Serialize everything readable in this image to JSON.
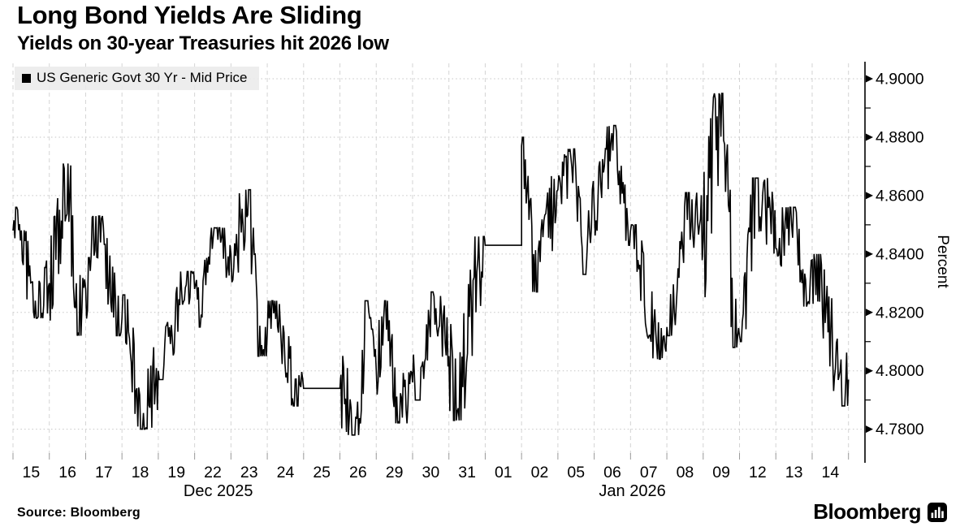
{
  "header": {
    "title": "Long Bond Yields Are Sliding",
    "subtitle": "Yields on 30-year Treasuries hit 2026 low"
  },
  "legend": {
    "label": "US Generic Govt 30 Yr - Mid Price",
    "swatch_color": "#000000"
  },
  "footer": {
    "source": "Source: Bloomberg",
    "brand": "Bloomberg"
  },
  "colors": {
    "series": "#000000",
    "grid_vertical": "#d4d4d4",
    "grid_horizontal": "#c6c6c6",
    "axis": "#000000",
    "x_tick": "#9a9a9a",
    "legend_bg": "#ebebeb",
    "background": "#ffffff",
    "text": "#000000"
  },
  "chart_data": {
    "type": "line",
    "title": "Long Bond Yields Are Sliding",
    "subtitle": "Yields on 30-year Treasuries hit 2026 low",
    "series_name": "US Generic Govt 30 Yr - Mid Price",
    "ylabel": "Percent",
    "ylim": [
      4.771,
      4.9053
    ],
    "grid": true,
    "legend_position": "top-left",
    "yticks": [
      {
        "value": 4.9,
        "label": "4.9000"
      },
      {
        "value": 4.88,
        "label": "4.8800"
      },
      {
        "value": 4.86,
        "label": "4.8600"
      },
      {
        "value": 4.84,
        "label": "4.8400"
      },
      {
        "value": 4.82,
        "label": "4.8200"
      },
      {
        "value": 4.8,
        "label": "4.8000"
      },
      {
        "value": 4.78,
        "label": "4.7800"
      }
    ],
    "y_minor_step": 0.01,
    "x_month_labels": [
      "Dec 2025",
      "Jan 2026"
    ],
    "days": [
      {
        "label": "15",
        "month": "Dec 2025",
        "open": 4.848,
        "high": 4.856,
        "low": 4.818,
        "close": 4.83,
        "th": 0.1,
        "tl": 0.65
      },
      {
        "label": "16",
        "month": "Dec 2025",
        "open": 4.83,
        "high": 4.871,
        "low": 4.812,
        "close": 4.828,
        "th": 0.5,
        "tl": 0.78
      },
      {
        "label": "17",
        "month": "Dec 2025",
        "open": 4.828,
        "high": 4.853,
        "low": 4.812,
        "close": 4.818,
        "th": 0.35,
        "tl": 0.95
      },
      {
        "label": "18",
        "month": "Dec 2025",
        "open": 4.818,
        "high": 4.826,
        "low": 4.78,
        "close": 4.8,
        "th": 0.05,
        "tl": 0.55
      },
      {
        "label": "19",
        "month": "Dec 2025",
        "open": 4.8,
        "high": 4.834,
        "low": 4.797,
        "close": 4.828,
        "th": 0.8,
        "tl": 0.05
      },
      {
        "label": "22",
        "month": "Dec 2025",
        "open": 4.828,
        "high": 4.849,
        "low": 4.815,
        "close": 4.84,
        "th": 0.45,
        "tl": 0.15
      },
      {
        "label": "23",
        "month": "Dec 2025",
        "open": 4.84,
        "high": 4.862,
        "low": 4.805,
        "close": 4.813,
        "th": 0.5,
        "tl": 0.75
      },
      {
        "label": "24",
        "month": "Dec 2025",
        "open": 4.813,
        "high": 4.824,
        "low": 4.788,
        "close": 4.794,
        "th": 0.15,
        "tl": 0.85
      },
      {
        "label": "25",
        "month": "Dec 2025",
        "open": 4.794,
        "high": 4.794,
        "low": 4.794,
        "close": 4.794,
        "flat": true
      },
      {
        "label": "26",
        "month": "Dec 2025",
        "open": 4.794,
        "high": 4.824,
        "low": 4.778,
        "close": 4.8,
        "th": 0.75,
        "tl": 0.5
      },
      {
        "label": "29",
        "month": "Dec 2025",
        "open": 4.8,
        "high": 4.824,
        "low": 4.782,
        "close": 4.796,
        "th": 0.25,
        "tl": 0.6
      },
      {
        "label": "30",
        "month": "Dec 2025",
        "open": 4.796,
        "high": 4.827,
        "low": 4.79,
        "close": 4.805,
        "th": 0.55,
        "tl": 0.2
      },
      {
        "label": "31",
        "month": "Dec 2025",
        "open": 4.805,
        "high": 4.846,
        "low": 4.783,
        "close": 4.843,
        "th": 0.95,
        "tl": 0.15
      },
      {
        "label": "01",
        "month": "Jan 2026",
        "open": 4.843,
        "high": 4.843,
        "low": 4.843,
        "close": 4.843,
        "flat": true
      },
      {
        "label": "02",
        "month": "Jan 2026",
        "open": 4.877,
        "high": 4.88,
        "low": 4.827,
        "close": 4.862,
        "th": 0.04,
        "tl": 0.35
      },
      {
        "label": "05",
        "month": "Jan 2026",
        "open": 4.862,
        "high": 4.876,
        "low": 4.833,
        "close": 4.856,
        "th": 0.45,
        "tl": 0.75
      },
      {
        "label": "06",
        "month": "Jan 2026",
        "open": 4.856,
        "high": 4.884,
        "low": 4.843,
        "close": 4.848,
        "th": 0.6,
        "tl": 0.95
      },
      {
        "label": "07",
        "month": "Jan 2026",
        "open": 4.848,
        "high": 4.85,
        "low": 4.804,
        "close": 4.815,
        "th": 0.04,
        "tl": 0.8
      },
      {
        "label": "08",
        "month": "Jan 2026",
        "open": 4.815,
        "high": 4.861,
        "low": 4.812,
        "close": 4.845,
        "th": 0.6,
        "tl": 0.05
      },
      {
        "label": "09",
        "month": "Jan 2026",
        "open": 4.845,
        "high": 4.895,
        "low": 4.808,
        "close": 4.812,
        "th": 0.55,
        "tl": 0.85
      },
      {
        "label": "12",
        "month": "Jan 2026",
        "open": 4.812,
        "high": 4.866,
        "low": 4.81,
        "close": 4.842,
        "th": 0.45,
        "tl": 0.05
      },
      {
        "label": "13",
        "month": "Jan 2026",
        "open": 4.842,
        "high": 4.856,
        "low": 4.822,
        "close": 4.838,
        "th": 0.5,
        "tl": 0.85
      },
      {
        "label": "14",
        "month": "Jan 2026",
        "open": 4.838,
        "high": 4.84,
        "low": 4.788,
        "close": 4.797,
        "th": 0.05,
        "tl": 0.9
      }
    ]
  }
}
